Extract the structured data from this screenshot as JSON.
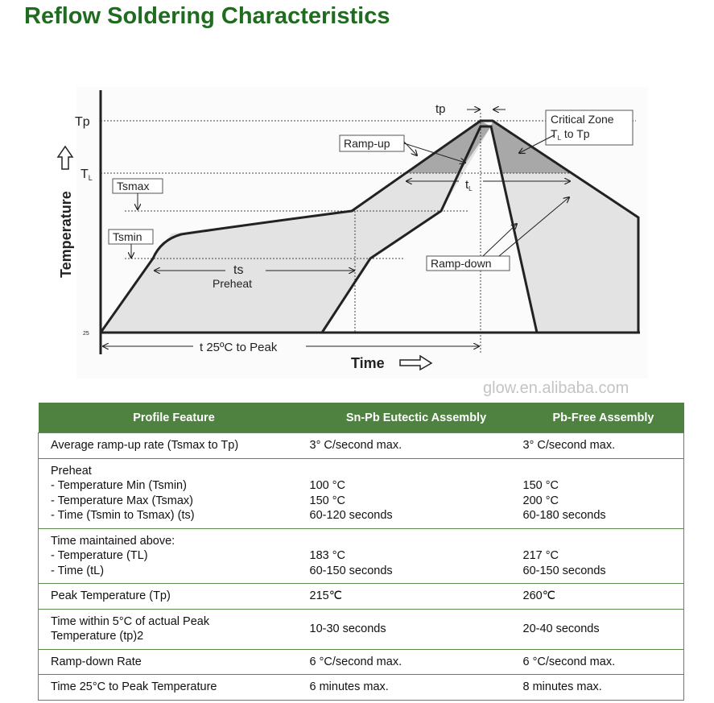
{
  "title": "Reflow Soldering Characteristics",
  "diagram": {
    "y_axis_label": "Temperature",
    "x_axis_label": "Time",
    "tp_level": "Tp",
    "tl_level": "T",
    "tl_sub": "L",
    "base_temp": "25",
    "tsmax": "Tsmax",
    "tsmin": "Tsmin",
    "ts": "ts",
    "preheat": "Preheat",
    "ramp_up": "Ramp-up",
    "ramp_down": "Ramp-down",
    "critical_zone_line1": "Critical Zone",
    "critical_zone_line2_a": "T",
    "critical_zone_line2_sub": "L",
    "critical_zone_line2_b": " to Tp",
    "tp_duration": "tp",
    "tl_duration": "t",
    "tl_duration_sub": "L",
    "t_to_peak": "t  25ºC to Peak",
    "watermark": "glow.en.alibaba.com"
  },
  "table": {
    "headers": [
      "Profile Feature",
      "Sn-Pb Eutectic Assembly",
      "Pb-Free Assembly"
    ],
    "rows": [
      {
        "feature": [
          "Average ramp-up rate (Tsmax to Tp)"
        ],
        "snpb": [
          "3° C/second max."
        ],
        "pbfree": [
          "3° C/second max."
        ]
      },
      {
        "feature": [
          "Preheat",
          "- Temperature Min (Tsmin)",
          "- Temperature Max (Tsmax)",
          "- Time (Tsmin to Tsmax) (ts)"
        ],
        "snpb": [
          "",
          "100 °C",
          "150 °C",
          "60-120 seconds"
        ],
        "pbfree": [
          "",
          "150 °C",
          "200 °C",
          "60-180 seconds"
        ]
      },
      {
        "feature": [
          "Time maintained above:",
          "- Temperature (TL)",
          "- Time (tL)"
        ],
        "snpb": [
          "",
          "183 °C",
          "60-150 seconds"
        ],
        "pbfree": [
          "",
          "217 °C",
          "60-150 seconds"
        ]
      },
      {
        "feature": [
          "Peak Temperature (Tp)"
        ],
        "snpb": [
          "215℃"
        ],
        "pbfree": [
          "260℃"
        ]
      },
      {
        "feature": [
          "Time within 5°C of actual Peak",
          "Temperature (tp)2"
        ],
        "snpb": [
          "10-30 seconds"
        ],
        "pbfree": [
          "20-40 seconds"
        ]
      },
      {
        "feature": [
          "Ramp-down Rate"
        ],
        "snpb": [
          "6 °C/second max."
        ],
        "pbfree": [
          "6 °C/second max."
        ]
      },
      {
        "feature": [
          "Time 25°C to Peak Temperature"
        ],
        "snpb": [
          "6 minutes max."
        ],
        "pbfree": [
          "8 minutes max."
        ]
      }
    ]
  }
}
